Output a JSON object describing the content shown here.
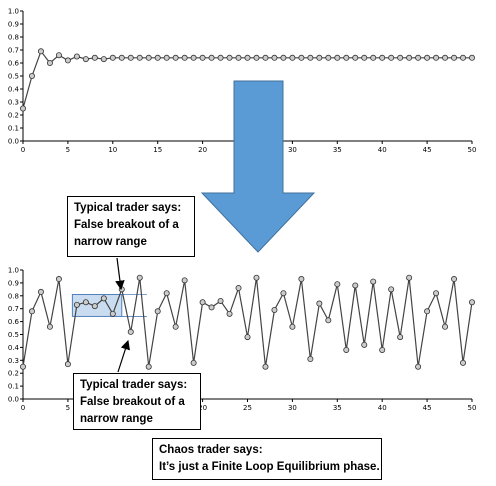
{
  "chart_data": [
    {
      "type": "line",
      "x": [
        0,
        1,
        2,
        3,
        4,
        5,
        6,
        7,
        8,
        9,
        10,
        11,
        12,
        13,
        14,
        15,
        16,
        17,
        18,
        19,
        20,
        21,
        22,
        23,
        24,
        25,
        26,
        27,
        28,
        29,
        30,
        31,
        32,
        33,
        34,
        35,
        36,
        37,
        38,
        39,
        40,
        41,
        42,
        43,
        44,
        45,
        46,
        47,
        48,
        49,
        50
      ],
      "series": [
        {
          "values": [
            0.25,
            0.5,
            0.69,
            0.6,
            0.66,
            0.62,
            0.65,
            0.63,
            0.64,
            0.63,
            0.64,
            0.64,
            0.64,
            0.64,
            0.64,
            0.64,
            0.64,
            0.64,
            0.64,
            0.64,
            0.64,
            0.64,
            0.64,
            0.64,
            0.64,
            0.64,
            0.64,
            0.64,
            0.64,
            0.64,
            0.64,
            0.64,
            0.64,
            0.64,
            0.64,
            0.64,
            0.64,
            0.64,
            0.64,
            0.64,
            0.64,
            0.64,
            0.64,
            0.64,
            0.64,
            0.64,
            0.64,
            0.64,
            0.64,
            0.64,
            0.64
          ]
        }
      ],
      "xlim": [
        0,
        50
      ],
      "ylim": [
        0,
        1.0
      ],
      "xticks": [
        0,
        5,
        10,
        15,
        20,
        25,
        30,
        35,
        40,
        45,
        50
      ],
      "yticks": [
        "0.0",
        "0.1",
        "0.2",
        "0.3",
        "0.4",
        "0.5",
        "0.6",
        "0.7",
        "0.8",
        "0.9",
        "1.0"
      ],
      "grid": false
    },
    {
      "type": "line",
      "x": [
        0,
        1,
        2,
        3,
        4,
        5,
        6,
        7,
        8,
        9,
        10,
        11,
        12,
        13,
        14,
        15,
        16,
        17,
        18,
        19,
        20,
        21,
        22,
        23,
        24,
        25,
        26,
        27,
        28,
        29,
        30,
        31,
        32,
        33,
        34,
        35,
        36,
        37,
        38,
        39,
        40,
        41,
        42,
        43,
        44,
        45,
        46,
        47,
        48,
        49,
        50
      ],
      "series": [
        {
          "values": [
            0.25,
            0.68,
            0.83,
            0.56,
            0.93,
            0.27,
            0.73,
            0.75,
            0.72,
            0.78,
            0.66,
            0.85,
            0.52,
            0.94,
            0.25,
            0.68,
            0.82,
            0.56,
            0.92,
            0.28,
            0.75,
            0.71,
            0.76,
            0.66,
            0.86,
            0.48,
            0.94,
            0.25,
            0.69,
            0.82,
            0.56,
            0.93,
            0.31,
            0.74,
            0.61,
            0.89,
            0.38,
            0.88,
            0.42,
            0.91,
            0.38,
            0.85,
            0.48,
            0.94,
            0.25,
            0.68,
            0.82,
            0.56,
            0.93,
            0.28,
            0.75
          ]
        }
      ],
      "xlim": [
        0,
        50
      ],
      "ylim": [
        0,
        1.0
      ],
      "xticks": [
        0,
        5,
        10,
        15,
        20,
        25,
        30,
        35,
        40,
        45,
        50
      ],
      "yticks": [
        "0.0",
        "0.1",
        "0.2",
        "0.3",
        "0.4",
        "0.5",
        "0.6",
        "0.7",
        "0.8",
        "0.9",
        "1.0"
      ],
      "grid": false,
      "highlight_range": {
        "x": [
          5.5,
          11
        ],
        "y": [
          0.64,
          0.81
        ]
      }
    }
  ],
  "callouts": {
    "top": {
      "line1": "Typical trader says:",
      "line2": "False breakout of a",
      "line3": "narrow range"
    },
    "bottom": {
      "line1": "Typical trader says:",
      "line2": "False breakout of a",
      "line3": "narrow range"
    },
    "chaos": {
      "line1": "Chaos trader says:",
      "line2": "It’s just a Finite Loop Equilibrium phase."
    }
  },
  "colors": {
    "arrow": "#5b9bd5",
    "arrow_border": "#41719c",
    "highlight": "#c9dcf0",
    "highlight_border": "#4f81bd",
    "line": "#444444",
    "marker_fill": "#cccccc"
  }
}
